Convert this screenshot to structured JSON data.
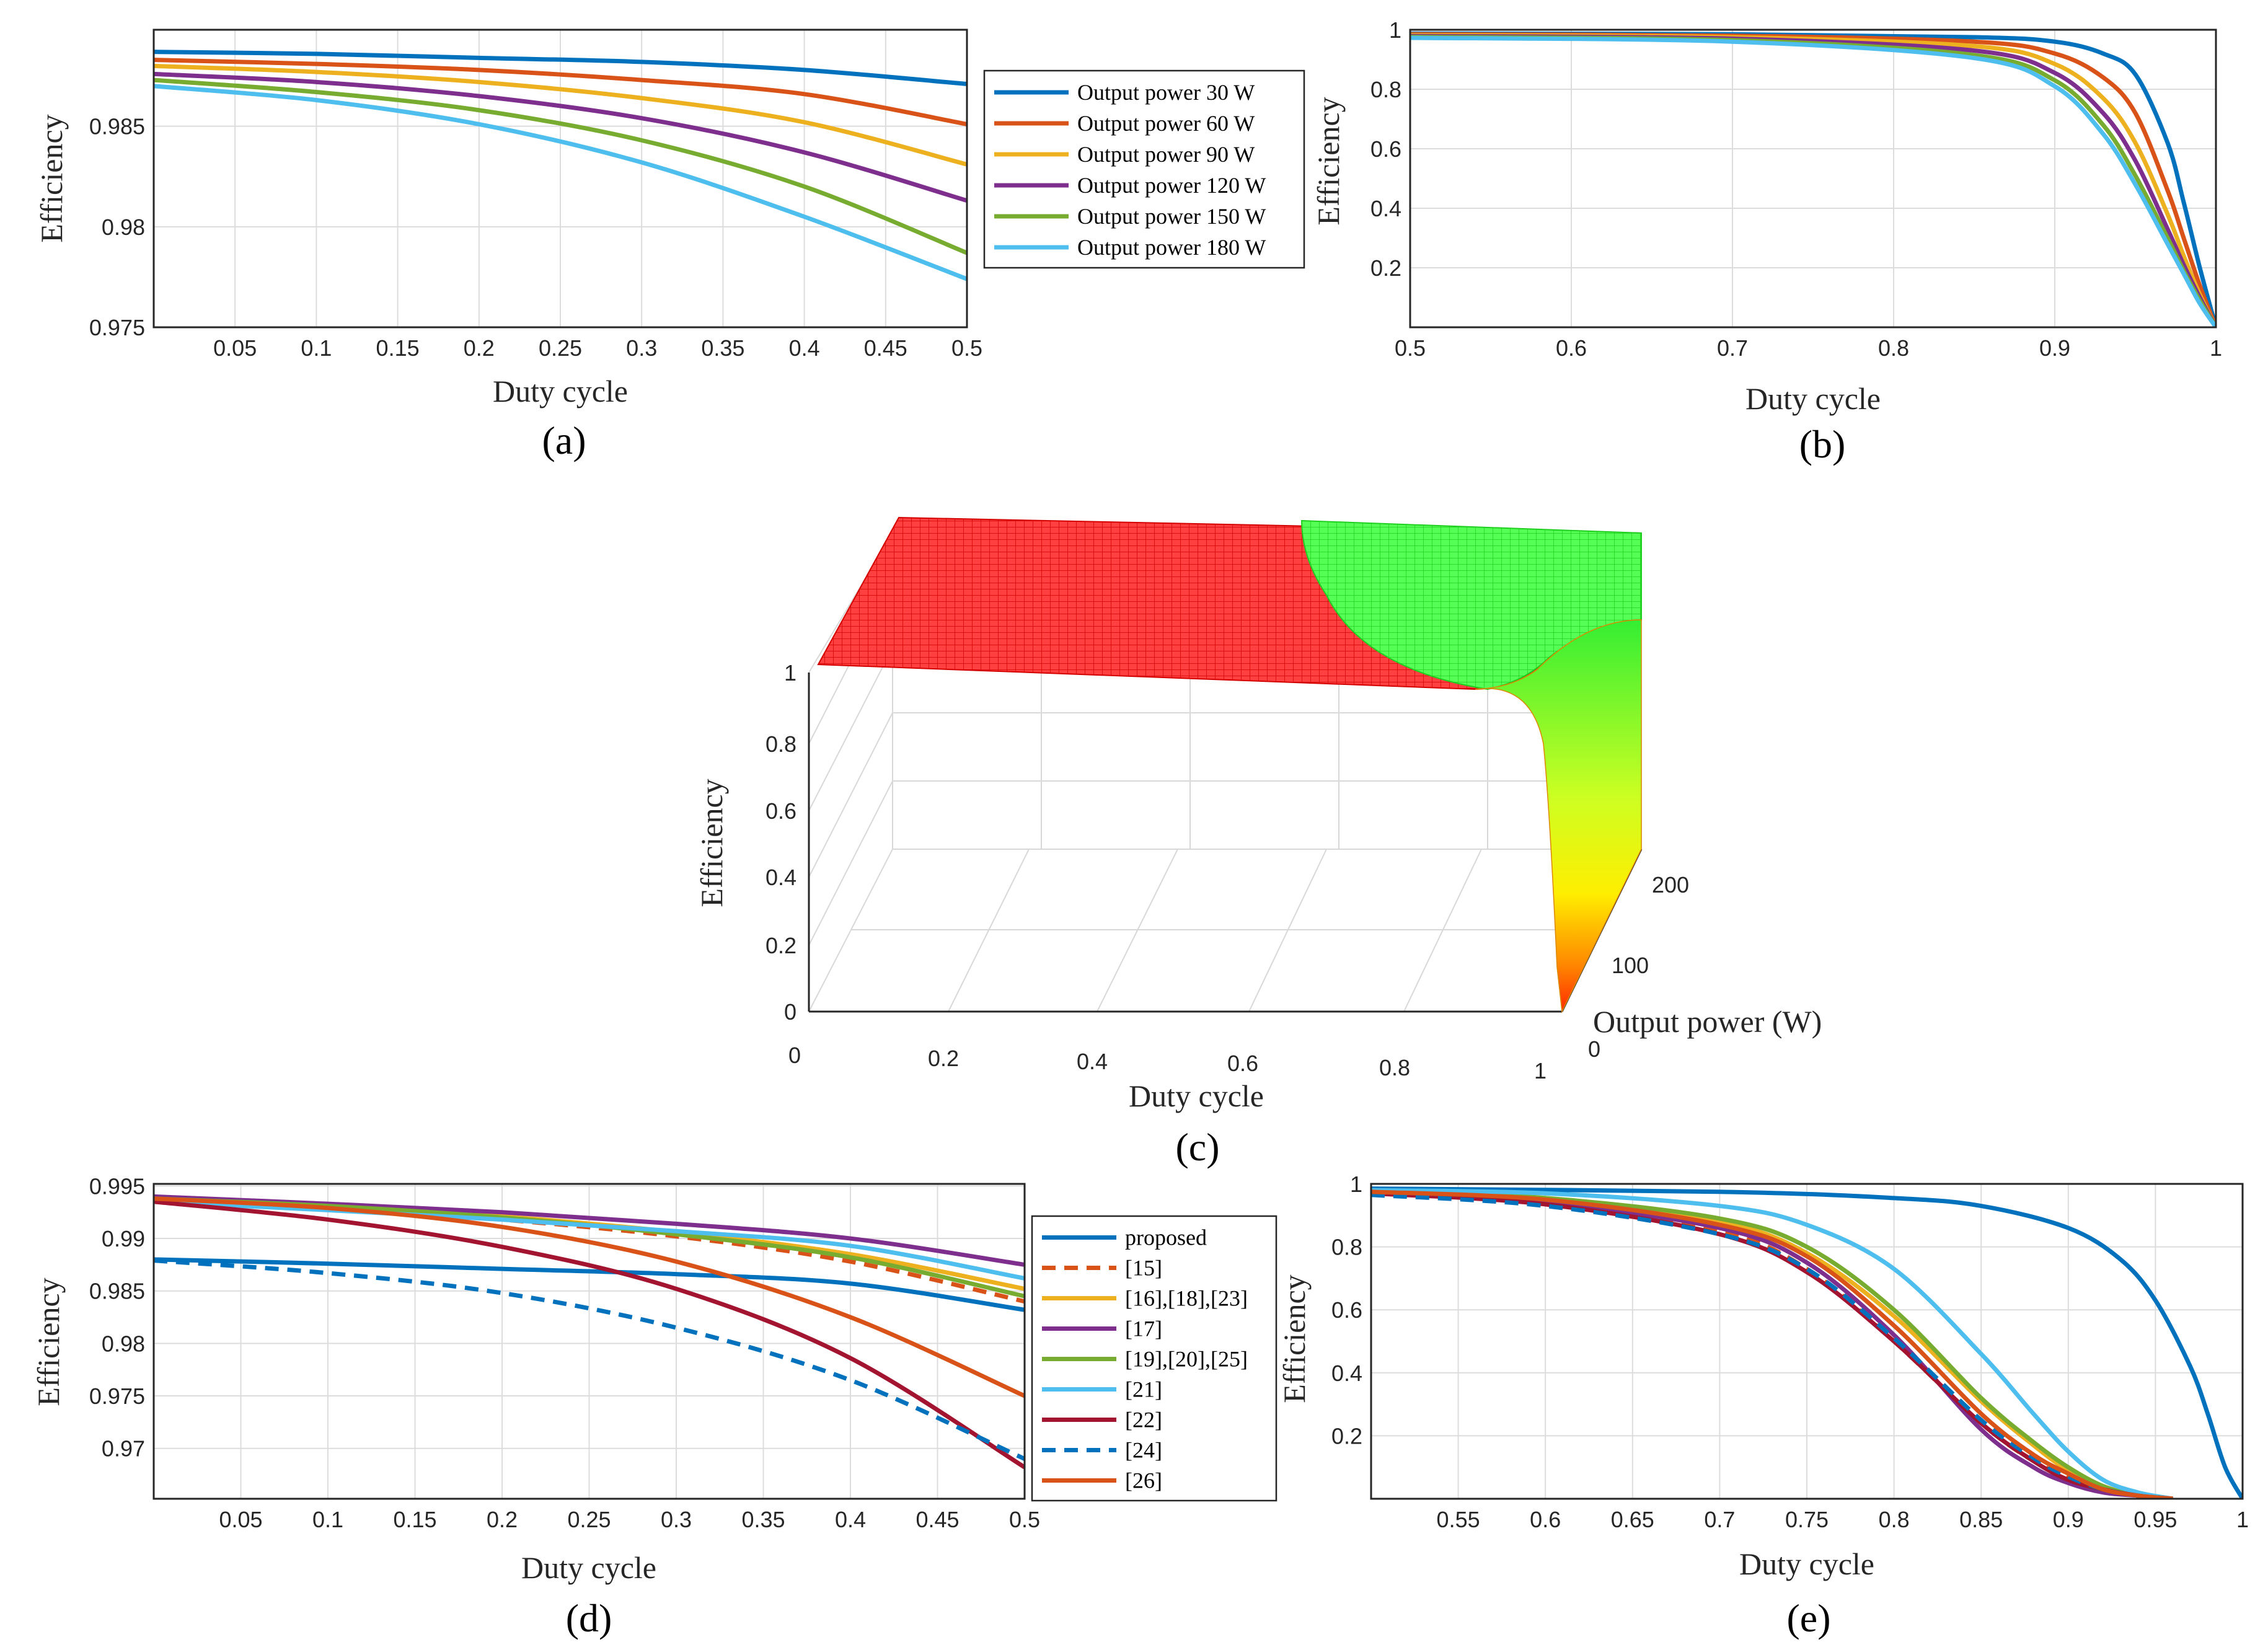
{
  "colors": {
    "c30": "#0072BD",
    "c60": "#D95319",
    "c90": "#EDB120",
    "c120": "#7E2F8E",
    "c150": "#77AC30",
    "c180": "#4DBEEE",
    "c22": "#A2142F",
    "surface_red": "#ff2a2a",
    "surface_green": "#33ff33"
  },
  "chart_data": [
    {
      "id": "a",
      "caption": "(a)",
      "type": "line",
      "xlabel": "Duty cycle",
      "ylabel": "Efficiency",
      "xlim": [
        0,
        0.5
      ],
      "ylim": [
        0.975,
        0.9898
      ],
      "xticks": [
        0.05,
        0.1,
        0.15,
        0.2,
        0.25,
        0.3,
        0.35,
        0.4,
        0.45,
        0.5
      ],
      "xtick_labels": [
        "0.05",
        "0.1",
        "0.15",
        "0.2",
        "0.25",
        "0.3",
        "0.35",
        "0.4",
        "0.45",
        "0.5"
      ],
      "yticks": [
        0.975,
        0.98,
        0.985
      ],
      "ytick_labels": [
        "0.975",
        "0.98",
        "0.985"
      ],
      "legend_position": "right-outside",
      "series": [
        {
          "name": "Output power 30 W",
          "color": "#0072BD",
          "x": [
            0,
            0.1,
            0.2,
            0.3,
            0.4,
            0.5
          ],
          "y": [
            0.9887,
            0.9886,
            0.9884,
            0.9882,
            0.9878,
            0.9871
          ]
        },
        {
          "name": "Output power 60 W",
          "color": "#D95319",
          "x": [
            0,
            0.1,
            0.2,
            0.3,
            0.4,
            0.5
          ],
          "y": [
            0.9883,
            0.9881,
            0.9878,
            0.9873,
            0.9866,
            0.9851
          ]
        },
        {
          "name": "Output power 90 W",
          "color": "#EDB120",
          "x": [
            0,
            0.1,
            0.2,
            0.3,
            0.4,
            0.5
          ],
          "y": [
            0.988,
            0.9877,
            0.9872,
            0.9864,
            0.9852,
            0.9831
          ]
        },
        {
          "name": "Output power 120 W",
          "color": "#7E2F8E",
          "x": [
            0,
            0.1,
            0.2,
            0.3,
            0.4,
            0.5
          ],
          "y": [
            0.9876,
            0.9872,
            0.9865,
            0.9854,
            0.9837,
            0.9813
          ]
        },
        {
          "name": "Output power 150 W",
          "color": "#77AC30",
          "x": [
            0,
            0.1,
            0.2,
            0.3,
            0.4,
            0.5
          ],
          "y": [
            0.9873,
            0.9867,
            0.9858,
            0.9843,
            0.982,
            0.9787
          ]
        },
        {
          "name": "Output power 180 W",
          "color": "#4DBEEE",
          "x": [
            0,
            0.1,
            0.2,
            0.3,
            0.4,
            0.5
          ],
          "y": [
            0.987,
            0.9863,
            0.9851,
            0.9832,
            0.9805,
            0.9774
          ]
        }
      ]
    },
    {
      "id": "b",
      "caption": "(b)",
      "type": "line",
      "xlabel": "Duty cycle",
      "ylabel": "Efficiency",
      "xlim": [
        0.5,
        1
      ],
      "ylim": [
        0,
        1.0
      ],
      "xticks": [
        0.5,
        0.6,
        0.7,
        0.8,
        0.9,
        1
      ],
      "xtick_labels": [
        "0.5",
        "0.6",
        "0.7",
        "0.8",
        "0.9",
        "1"
      ],
      "yticks": [
        0.2,
        0.4,
        0.6,
        0.8,
        1
      ],
      "ytick_labels": [
        "0.2",
        "0.4",
        "0.6",
        "0.8",
        "1"
      ],
      "series": [
        {
          "name": "Output power 30 W",
          "color": "#0072BD",
          "x": [
            0.5,
            0.7,
            0.85,
            0.9,
            0.93,
            0.95,
            0.97,
            0.98,
            0.99,
            1.0
          ],
          "y": [
            0.987,
            0.985,
            0.975,
            0.96,
            0.92,
            0.85,
            0.62,
            0.42,
            0.2,
            0.0
          ]
        },
        {
          "name": "Output power 60 W",
          "color": "#D95319",
          "x": [
            0.5,
            0.7,
            0.85,
            0.9,
            0.93,
            0.95,
            0.97,
            0.98,
            0.99,
            1.0
          ],
          "y": [
            0.985,
            0.98,
            0.96,
            0.92,
            0.84,
            0.72,
            0.46,
            0.3,
            0.14,
            0.0
          ]
        },
        {
          "name": "Output power 90 W",
          "color": "#EDB120",
          "x": [
            0.5,
            0.7,
            0.85,
            0.9,
            0.93,
            0.95,
            0.97,
            0.98,
            0.99,
            1.0
          ],
          "y": [
            0.982,
            0.975,
            0.945,
            0.885,
            0.77,
            0.62,
            0.38,
            0.24,
            0.11,
            0.0
          ]
        },
        {
          "name": "Output power 120 W",
          "color": "#7E2F8E",
          "x": [
            0.5,
            0.7,
            0.85,
            0.9,
            0.93,
            0.95,
            0.97,
            0.98,
            0.99,
            1.0
          ],
          "y": [
            0.979,
            0.97,
            0.93,
            0.855,
            0.72,
            0.56,
            0.33,
            0.21,
            0.1,
            0.0
          ]
        },
        {
          "name": "Output power 150 W",
          "color": "#77AC30",
          "x": [
            0.5,
            0.7,
            0.85,
            0.9,
            0.93,
            0.95,
            0.97,
            0.98,
            0.99,
            1.0
          ],
          "y": [
            0.976,
            0.965,
            0.915,
            0.83,
            0.68,
            0.51,
            0.3,
            0.19,
            0.09,
            0.0
          ]
        },
        {
          "name": "Output power 180 W",
          "color": "#4DBEEE",
          "x": [
            0.5,
            0.7,
            0.85,
            0.9,
            0.93,
            0.95,
            0.97,
            0.98,
            0.99,
            1.0
          ],
          "y": [
            0.973,
            0.96,
            0.905,
            0.81,
            0.65,
            0.48,
            0.28,
            0.18,
            0.08,
            0.0
          ]
        }
      ]
    },
    {
      "id": "c",
      "caption": "(c)",
      "type": "surface",
      "xlabel": "Duty cycle",
      "ylabel": "Output power (W)",
      "zlabel": "Efficiency",
      "xlim": [
        0,
        1
      ],
      "ylim": [
        0,
        200
      ],
      "zlim": [
        0,
        1
      ],
      "xtick_labels": [
        "0",
        "0.2",
        "0.4",
        "0.6",
        "0.8",
        "1"
      ],
      "ytick_labels": [
        "0",
        "100",
        "200"
      ],
      "ztick_labels": [
        "0",
        "0.2",
        "0.4",
        "0.6",
        "0.8",
        "1"
      ]
    },
    {
      "id": "d",
      "caption": "(d)",
      "type": "line",
      "xlabel": "Duty cycle",
      "ylabel": "Efficiency",
      "xlim": [
        0,
        0.5
      ],
      "ylim": [
        0.9652,
        0.9952
      ],
      "xticks": [
        0.05,
        0.1,
        0.15,
        0.2,
        0.25,
        0.3,
        0.35,
        0.4,
        0.45,
        0.5
      ],
      "xtick_labels": [
        "0.05",
        "0.1",
        "0.15",
        "0.2",
        "0.25",
        "0.3",
        "0.35",
        "0.4",
        "0.45",
        "0.5"
      ],
      "yticks": [
        0.97,
        0.975,
        0.98,
        0.985,
        0.99,
        0.995
      ],
      "ytick_labels": [
        "0.97",
        "0.975",
        "0.98",
        "0.985",
        "0.99",
        "0.995"
      ],
      "legend_position": "right-outside",
      "series": [
        {
          "name": "proposed",
          "color": "#0072BD",
          "dash": false,
          "x": [
            0,
            0.1,
            0.2,
            0.3,
            0.4,
            0.5
          ],
          "y": [
            0.988,
            0.9876,
            0.9871,
            0.9866,
            0.9857,
            0.9832
          ]
        },
        {
          "name": "[15]",
          "color": "#D95319",
          "dash": true,
          "x": [
            0,
            0.1,
            0.2,
            0.3,
            0.4,
            0.5
          ],
          "y": [
            0.9938,
            0.993,
            0.9918,
            0.9902,
            0.9878,
            0.984
          ]
        },
        {
          "name": "[16],[18],[23]",
          "color": "#EDB120",
          "dash": false,
          "x": [
            0,
            0.1,
            0.2,
            0.3,
            0.4,
            0.5
          ],
          "y": [
            0.9938,
            0.9931,
            0.9921,
            0.9906,
            0.9885,
            0.9852
          ]
        },
        {
          "name": "[17]",
          "color": "#7E2F8E",
          "dash": false,
          "x": [
            0,
            0.1,
            0.2,
            0.3,
            0.4,
            0.5
          ],
          "y": [
            0.994,
            0.9933,
            0.9925,
            0.9914,
            0.99,
            0.9875
          ]
        },
        {
          "name": "[19],[20],[25]",
          "color": "#77AC30",
          "dash": false,
          "x": [
            0,
            0.1,
            0.2,
            0.3,
            0.4,
            0.5
          ],
          "y": [
            0.9938,
            0.9931,
            0.992,
            0.9904,
            0.9882,
            0.9845
          ]
        },
        {
          "name": "[21]",
          "color": "#4DBEEE",
          "dash": false,
          "x": [
            0,
            0.1,
            0.2,
            0.3,
            0.4,
            0.5
          ],
          "y": [
            0.9935,
            0.9927,
            0.9918,
            0.9907,
            0.9893,
            0.9862
          ]
        },
        {
          "name": "[22]",
          "color": "#A2142F",
          "dash": false,
          "x": [
            0,
            0.1,
            0.2,
            0.3,
            0.4,
            0.5
          ],
          "y": [
            0.9935,
            0.9918,
            0.9892,
            0.9852,
            0.9786,
            0.9682
          ]
        },
        {
          "name": "[24]",
          "color": "#0072BD",
          "dash": true,
          "x": [
            0,
            0.1,
            0.2,
            0.3,
            0.4,
            0.5
          ],
          "y": [
            0.9879,
            0.9867,
            0.9848,
            0.9815,
            0.9765,
            0.969
          ]
        },
        {
          "name": "[26]",
          "color": "#D95319",
          "dash": false,
          "x": [
            0,
            0.1,
            0.2,
            0.3,
            0.4,
            0.5
          ],
          "y": [
            0.9938,
            0.9929,
            0.9911,
            0.9878,
            0.9825,
            0.975
          ]
        }
      ]
    },
    {
      "id": "e",
      "caption": "(e)",
      "type": "line",
      "xlabel": "Duty cycle",
      "ylabel": "Efficiency",
      "xlim": [
        0.5,
        1
      ],
      "ylim": [
        0,
        1.0
      ],
      "xticks": [
        0.55,
        0.6,
        0.65,
        0.7,
        0.75,
        0.8,
        0.85,
        0.9,
        0.95,
        1
      ],
      "xtick_labels": [
        "0.55",
        "0.6",
        "0.65",
        "0.7",
        "0.75",
        "0.8",
        "0.85",
        "0.9",
        "0.95",
        "1"
      ],
      "yticks": [
        0.2,
        0.4,
        0.6,
        0.8,
        1
      ],
      "ytick_labels": [
        "0.2",
        "0.4",
        "0.6",
        "0.8",
        "1"
      ],
      "series": [
        {
          "name": "proposed",
          "color": "#0072BD",
          "dash": false,
          "x": [
            0.5,
            0.7,
            0.8,
            0.85,
            0.9,
            0.93,
            0.95,
            0.97,
            0.98,
            0.99,
            1.0
          ],
          "y": [
            0.985,
            0.975,
            0.955,
            0.93,
            0.86,
            0.76,
            0.63,
            0.42,
            0.27,
            0.1,
            0.0
          ]
        },
        {
          "name": "[15]",
          "color": "#D95319",
          "dash": true,
          "x": [
            0.5,
            0.6,
            0.7,
            0.75,
            0.8,
            0.85,
            0.88,
            0.9,
            0.92,
            0.94,
            0.96
          ],
          "y": [
            0.97,
            0.94,
            0.85,
            0.73,
            0.5,
            0.24,
            0.12,
            0.07,
            0.03,
            0.01,
            0.0
          ]
        },
        {
          "name": "[16],[18],[23]",
          "color": "#EDB120",
          "dash": false,
          "x": [
            0.5,
            0.6,
            0.7,
            0.75,
            0.8,
            0.85,
            0.88,
            0.9,
            0.92,
            0.94,
            0.96
          ],
          "y": [
            0.975,
            0.955,
            0.88,
            0.78,
            0.58,
            0.31,
            0.17,
            0.09,
            0.04,
            0.01,
            0.0
          ]
        },
        {
          "name": "[17]",
          "color": "#7E2F8E",
          "dash": false,
          "x": [
            0.5,
            0.6,
            0.7,
            0.75,
            0.8,
            0.85,
            0.88,
            0.9,
            0.92,
            0.94,
            0.96
          ],
          "y": [
            0.97,
            0.94,
            0.86,
            0.75,
            0.52,
            0.22,
            0.1,
            0.05,
            0.02,
            0.01,
            0.0
          ]
        },
        {
          "name": "[19],[20],[25]",
          "color": "#77AC30",
          "dash": false,
          "x": [
            0.5,
            0.6,
            0.7,
            0.75,
            0.8,
            0.85,
            0.88,
            0.9,
            0.92,
            0.94,
            0.96
          ],
          "y": [
            0.975,
            0.955,
            0.89,
            0.8,
            0.6,
            0.32,
            0.18,
            0.1,
            0.04,
            0.01,
            0.0
          ]
        },
        {
          "name": "[21]",
          "color": "#4DBEEE",
          "dash": false,
          "x": [
            0.5,
            0.6,
            0.7,
            0.75,
            0.8,
            0.85,
            0.88,
            0.9,
            0.92,
            0.94,
            0.96
          ],
          "y": [
            0.98,
            0.97,
            0.93,
            0.87,
            0.73,
            0.46,
            0.27,
            0.15,
            0.06,
            0.02,
            0.0
          ]
        },
        {
          "name": "[22]",
          "color": "#A2142F",
          "dash": false,
          "x": [
            0.5,
            0.6,
            0.7,
            0.75,
            0.8,
            0.85,
            0.88,
            0.9,
            0.92,
            0.94,
            0.96
          ],
          "y": [
            0.97,
            0.935,
            0.84,
            0.72,
            0.5,
            0.24,
            0.12,
            0.06,
            0.03,
            0.01,
            0.0
          ]
        },
        {
          "name": "[24]",
          "color": "#0072BD",
          "dash": true,
          "x": [
            0.5,
            0.6,
            0.7,
            0.75,
            0.8,
            0.85,
            0.88,
            0.9,
            0.92,
            0.94,
            0.96
          ],
          "y": [
            0.965,
            0.93,
            0.84,
            0.73,
            0.51,
            0.25,
            0.13,
            0.07,
            0.03,
            0.01,
            0.0
          ]
        },
        {
          "name": "[26]",
          "color": "#D95319",
          "dash": false,
          "x": [
            0.5,
            0.6,
            0.7,
            0.75,
            0.8,
            0.85,
            0.88,
            0.9,
            0.92,
            0.94,
            0.96
          ],
          "y": [
            0.975,
            0.95,
            0.87,
            0.77,
            0.55,
            0.27,
            0.14,
            0.08,
            0.03,
            0.01,
            0.0
          ]
        }
      ]
    }
  ]
}
